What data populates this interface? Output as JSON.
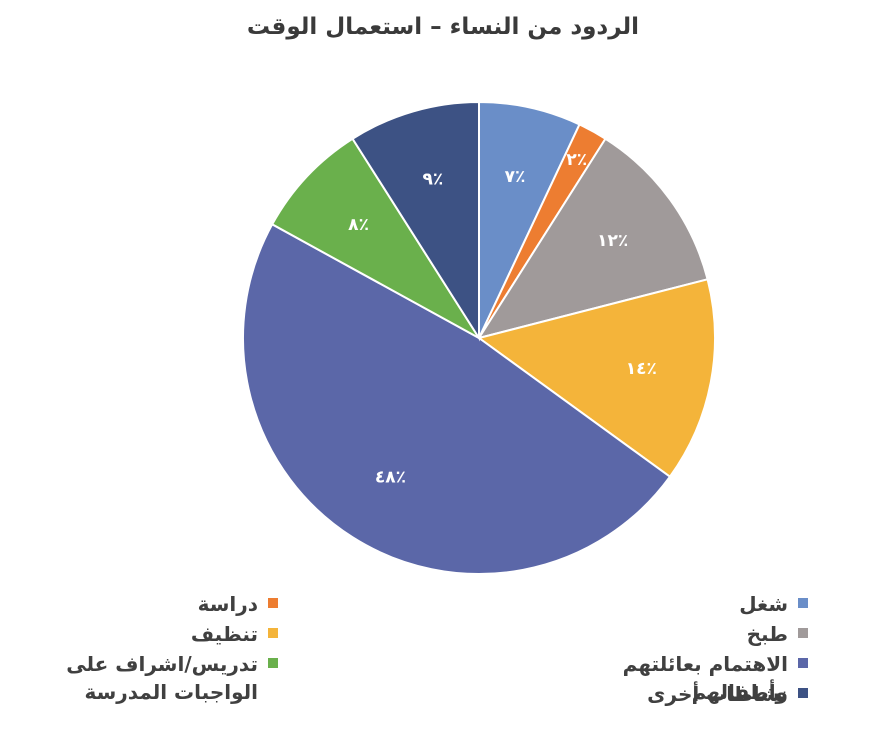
{
  "chart_data": {
    "type": "pie",
    "title": "الردود من النساء – استعمال الوقت",
    "slices": [
      {
        "name": "شغل",
        "value": 7,
        "label": "٪٧",
        "color": "#6a8ec8"
      },
      {
        "name": "دراسة",
        "value": 2,
        "label": "٪٢",
        "color": "#ed7d31"
      },
      {
        "name": "طبخ",
        "value": 12,
        "label": "٪١٢",
        "color": "#a09a9a"
      },
      {
        "name": "تنظيف",
        "value": 14,
        "label": "٪١٤",
        "color": "#f4b43a"
      },
      {
        "name": "الاهتمام بعائلتهم وأطفالهم",
        "value": 48,
        "label": "٪٤٨",
        "color": "#5b67a8"
      },
      {
        "name": "تدريس/اشراف على الواجبات المدرسة",
        "value": 8,
        "label": "٪٨",
        "color": "#6ab04c"
      },
      {
        "name": "نشاطات أخرى",
        "value": 9,
        "label": "٪٩",
        "color": "#3d5284"
      }
    ],
    "legend": {
      "right_column": [
        {
          "label": "شغل",
          "color": "#6a8ec8"
        },
        {
          "label": "طبخ",
          "color": "#a09a9a"
        },
        {
          "label": "الاهتمام بعائلتهم وأطفالهم",
          "color": "#5b67a8"
        },
        {
          "label": "نشاطات أخرى",
          "color": "#3d5284"
        }
      ],
      "left_column": [
        {
          "label": "دراسة",
          "color": "#ed7d31"
        },
        {
          "label": "تنظيف",
          "color": "#f4b43a"
        },
        {
          "label": "تدريس/اشراف على الواجبات المدرسة",
          "color": "#6ab04c"
        }
      ],
      "placement": "bottom"
    }
  }
}
